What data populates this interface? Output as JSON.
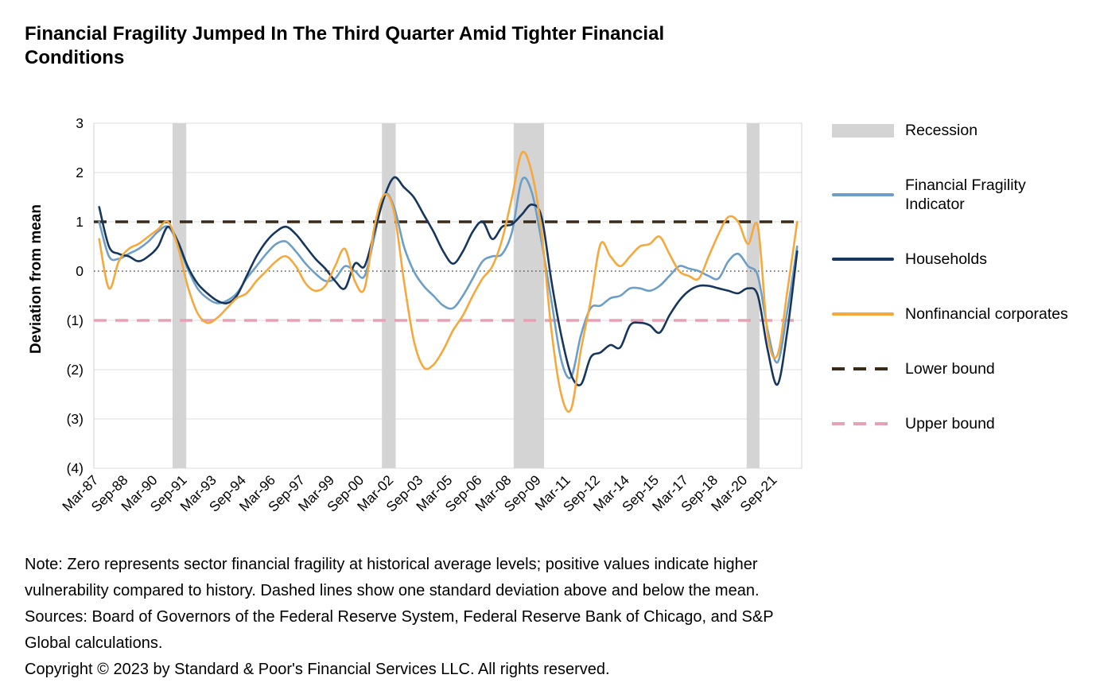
{
  "title": {
    "line1": "Financial Fragility Jumped In The Third Quarter Amid Tighter Financial",
    "line2": "Conditions"
  },
  "chart_data": {
    "type": "line",
    "title": "Financial Fragility Jumped In The Third Quarter Amid Tighter Financial Conditions",
    "xlabel": "",
    "ylabel": "Deviation from mean",
    "ylim": [
      -4,
      3
    ],
    "xlim": [
      1986.9,
      2022.9
    ],
    "grid": "horizontal",
    "legend_position": "right",
    "y_ticks": [
      {
        "value": 3,
        "label": "3"
      },
      {
        "value": 2,
        "label": "2"
      },
      {
        "value": 1,
        "label": "1"
      },
      {
        "value": 0,
        "label": "0"
      },
      {
        "value": -1,
        "label": "(1)"
      },
      {
        "value": -2,
        "label": "(2)"
      },
      {
        "value": -3,
        "label": "(3)"
      },
      {
        "value": -4,
        "label": "(4)"
      }
    ],
    "x_ticks": [
      {
        "t": 1987.17,
        "label": "Mar-87"
      },
      {
        "t": 1988.67,
        "label": "Sep-88"
      },
      {
        "t": 1990.17,
        "label": "Mar-90"
      },
      {
        "t": 1991.67,
        "label": "Sep-91"
      },
      {
        "t": 1993.17,
        "label": "Mar-93"
      },
      {
        "t": 1994.67,
        "label": "Sep-94"
      },
      {
        "t": 1996.17,
        "label": "Mar-96"
      },
      {
        "t": 1997.67,
        "label": "Sep-97"
      },
      {
        "t": 1999.17,
        "label": "Mar-99"
      },
      {
        "t": 2000.67,
        "label": "Sep-00"
      },
      {
        "t": 2002.17,
        "label": "Mar-02"
      },
      {
        "t": 2003.67,
        "label": "Sep-03"
      },
      {
        "t": 2005.17,
        "label": "Mar-05"
      },
      {
        "t": 2006.67,
        "label": "Sep-06"
      },
      {
        "t": 2008.17,
        "label": "Mar-08"
      },
      {
        "t": 2009.67,
        "label": "Sep-09"
      },
      {
        "t": 2011.17,
        "label": "Mar-11"
      },
      {
        "t": 2012.67,
        "label": "Sep-12"
      },
      {
        "t": 2014.17,
        "label": "Mar-14"
      },
      {
        "t": 2015.67,
        "label": "Sep-15"
      },
      {
        "t": 2017.17,
        "label": "Mar-17"
      },
      {
        "t": 2018.67,
        "label": "Sep-18"
      },
      {
        "t": 2020.17,
        "label": "Mar-20"
      },
      {
        "t": 2021.67,
        "label": "Sep-21"
      }
    ],
    "recessions": [
      [
        1990.9,
        1991.6
      ],
      [
        2001.55,
        2002.25
      ],
      [
        2008.25,
        2009.8
      ],
      [
        2020.1,
        2020.75
      ]
    ],
    "recession_color": "#d4d4d4",
    "bounds": {
      "lower": {
        "label": "Lower bound",
        "value": 1,
        "color": "#3b2a18"
      },
      "upper": {
        "label": "Upper bound",
        "value": -1,
        "color": "#e8a0b5"
      }
    },
    "x": [
      1987.17,
      1987.67,
      1988.17,
      1988.67,
      1989.17,
      1989.67,
      1990.17,
      1990.67,
      1991.17,
      1991.67,
      1992.17,
      1992.67,
      1993.17,
      1993.67,
      1994.17,
      1994.67,
      1995.17,
      1995.67,
      1996.17,
      1996.67,
      1997.17,
      1997.67,
      1998.17,
      1998.67,
      1999.17,
      1999.67,
      2000.17,
      2000.67,
      2001.17,
      2001.67,
      2002.17,
      2002.67,
      2003.17,
      2003.67,
      2004.17,
      2004.67,
      2005.17,
      2005.67,
      2006.17,
      2006.67,
      2007.17,
      2007.67,
      2008.17,
      2008.67,
      2009.17,
      2009.67,
      2010.17,
      2010.67,
      2011.17,
      2011.67,
      2012.17,
      2012.67,
      2013.17,
      2013.67,
      2014.17,
      2014.67,
      2015.17,
      2015.67,
      2016.17,
      2016.67,
      2017.17,
      2017.67,
      2018.17,
      2018.67,
      2019.17,
      2019.67,
      2020.17,
      2020.67,
      2021.17,
      2021.67,
      2022.17,
      2022.67
    ],
    "series": [
      {
        "name": "Financial Fragility Indicator",
        "color": "#6d9ec7",
        "values": [
          1.0,
          0.3,
          0.25,
          0.35,
          0.45,
          0.6,
          0.8,
          0.9,
          0.55,
          0.05,
          -0.35,
          -0.55,
          -0.65,
          -0.6,
          -0.45,
          -0.15,
          0.1,
          0.35,
          0.55,
          0.6,
          0.4,
          0.15,
          -0.05,
          -0.2,
          -0.15,
          0.1,
          0.0,
          -0.1,
          0.7,
          1.55,
          1.3,
          0.5,
          0.0,
          -0.3,
          -0.5,
          -0.7,
          -0.75,
          -0.5,
          -0.15,
          0.2,
          0.3,
          0.35,
          0.8,
          1.85,
          1.6,
          0.6,
          -0.6,
          -1.8,
          -2.15,
          -1.3,
          -0.75,
          -0.7,
          -0.55,
          -0.5,
          -0.35,
          -0.35,
          -0.4,
          -0.3,
          -0.1,
          0.1,
          0.05,
          0.0,
          -0.1,
          -0.15,
          0.2,
          0.35,
          0.1,
          -0.1,
          -1.2,
          -1.85,
          -0.8,
          0.5
        ]
      },
      {
        "name": "Households",
        "color": "#17365d",
        "values": [
          1.3,
          0.5,
          0.35,
          0.3,
          0.2,
          0.3,
          0.5,
          0.9,
          0.6,
          0.1,
          -0.25,
          -0.45,
          -0.6,
          -0.65,
          -0.5,
          -0.1,
          0.3,
          0.6,
          0.8,
          0.9,
          0.75,
          0.5,
          0.25,
          0.05,
          -0.2,
          -0.35,
          0.15,
          0.1,
          0.8,
          1.5,
          1.9,
          1.7,
          1.5,
          1.15,
          0.8,
          0.4,
          0.15,
          0.4,
          0.8,
          1.0,
          0.65,
          0.9,
          0.95,
          1.15,
          1.35,
          1.1,
          -0.2,
          -1.3,
          -2.1,
          -2.3,
          -1.75,
          -1.65,
          -1.5,
          -1.55,
          -1.1,
          -1.05,
          -1.1,
          -1.25,
          -0.9,
          -0.6,
          -0.4,
          -0.3,
          -0.3,
          -0.35,
          -0.4,
          -0.45,
          -0.35,
          -0.5,
          -1.6,
          -2.3,
          -1.2,
          0.4
        ]
      },
      {
        "name": "Nonfinancial corporates",
        "color": "#f5a83c",
        "values": [
          0.65,
          -0.35,
          0.2,
          0.45,
          0.55,
          0.7,
          0.85,
          1.0,
          0.5,
          -0.3,
          -0.85,
          -1.05,
          -0.95,
          -0.75,
          -0.55,
          -0.45,
          -0.2,
          0.0,
          0.2,
          0.3,
          0.1,
          -0.25,
          -0.4,
          -0.3,
          0.1,
          0.45,
          -0.2,
          -0.35,
          0.9,
          1.55,
          1.2,
          -0.2,
          -1.4,
          -1.95,
          -1.9,
          -1.6,
          -1.2,
          -0.9,
          -0.5,
          -0.15,
          0.1,
          0.65,
          1.5,
          2.4,
          2.0,
          0.8,
          -1.2,
          -2.5,
          -2.8,
          -1.6,
          -0.6,
          0.55,
          0.3,
          0.1,
          0.3,
          0.5,
          0.55,
          0.7,
          0.35,
          0.0,
          -0.1,
          -0.15,
          0.3,
          0.75,
          1.1,
          1.0,
          0.55,
          0.9,
          -1.3,
          -1.7,
          -0.4,
          1.0
        ]
      }
    ]
  },
  "legend": {
    "items": [
      {
        "label": "Recession",
        "swatch": "band",
        "color": "#d4d4d4"
      },
      {
        "label": "Financial Fragility Indicator",
        "swatch": "line",
        "color": "#6d9ec7"
      },
      {
        "label": "Households",
        "swatch": "line",
        "color": "#17365d"
      },
      {
        "label": "Nonfinancial corporates",
        "swatch": "line",
        "color": "#f5a83c"
      },
      {
        "label": "Lower bound",
        "swatch": "dashed",
        "color": "#3b2a18"
      },
      {
        "label": "Upper bound",
        "swatch": "dashed",
        "color": "#e8a0b5"
      }
    ]
  },
  "notes": {
    "lines": [
      "Note: Zero represents sector financial fragility at historical average levels; positive values indicate higher",
      "vulnerability compared to history. Dashed lines show one standard deviation above and below the mean.",
      "Sources: Board of Governors of the Federal Reserve System, Federal Reserve Bank of Chicago, and S&P",
      "Global calculations.",
      "Copyright © 2023 by Standard & Poor's Financial Services LLC. All rights reserved."
    ]
  }
}
